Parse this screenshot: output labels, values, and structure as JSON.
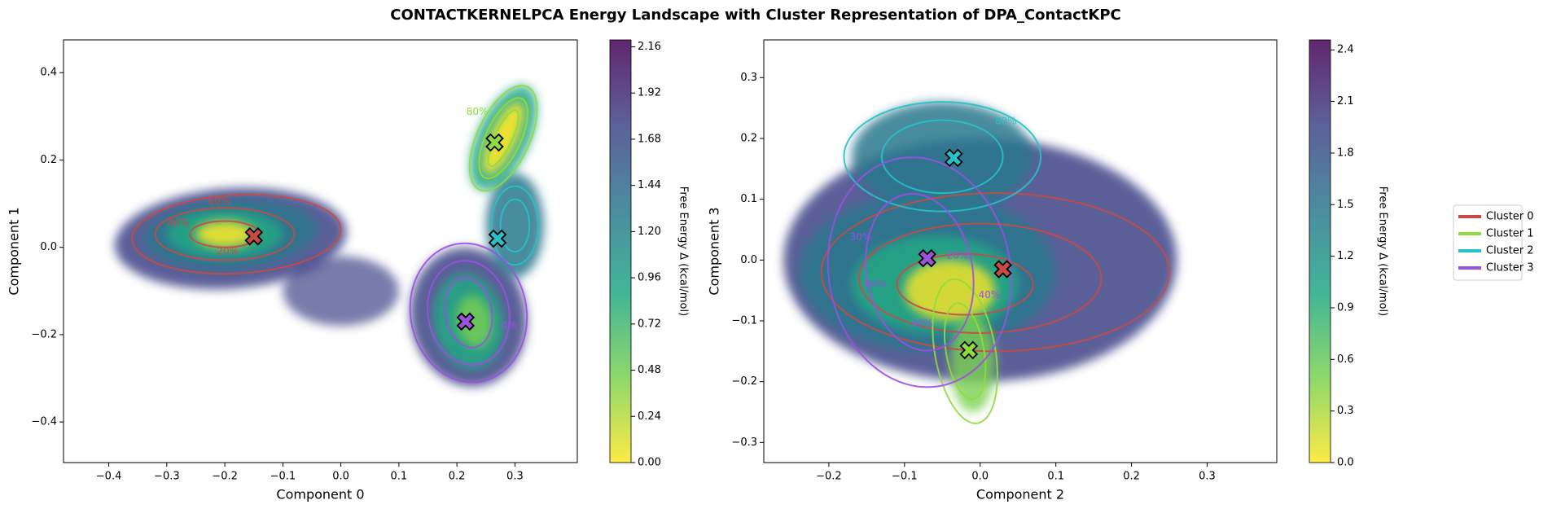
{
  "title": "CONTACTKERNELPCA Energy Landscape with Cluster Representation of DPA_ContactKPC",
  "legend": {
    "corner": "right",
    "entries": [
      {
        "name": "Cluster 0",
        "color": "#c94a44"
      },
      {
        "name": "Cluster 1",
        "color": "#8fdc3f"
      },
      {
        "name": "Cluster 2",
        "color": "#26c1c9"
      },
      {
        "name": "Cluster 3",
        "color": "#9b50e0"
      }
    ]
  },
  "colormap": [
    "#fde725",
    "#7ad151",
    "#22a884",
    "#2a788e",
    "#414487",
    "#440154"
  ],
  "chart_data": [
    {
      "type": "scatter",
      "x_label": "Component 0",
      "y_label": "Component 1",
      "x": [
        -0.15,
        0.265,
        0.27,
        0.215
      ],
      "values": [
        0.025,
        0.24,
        0.02,
        -0.17
      ],
      "colors": [
        "#c94a44",
        "#8fdc3f",
        "#26c1c9",
        "#9b50e0"
      ],
      "xlim": [
        -0.478,
        0.4075
      ],
      "ylim": [
        -0.493,
        0.475
      ],
      "xticks": [
        {
          "value": -0.4,
          "label": "−0.4"
        },
        {
          "value": -0.3,
          "label": "−0.3"
        },
        {
          "value": -0.2,
          "label": "−0.2"
        },
        {
          "value": -0.1,
          "label": "−0.1"
        },
        {
          "value": 0,
          "label": "0.0"
        },
        {
          "value": 0.1,
          "label": "0.1"
        },
        {
          "value": 0.2,
          "label": "0.2"
        },
        {
          "value": 0.3,
          "label": "0.3"
        }
      ],
      "yticks": [
        {
          "value": -0.4,
          "label": "−0.4"
        },
        {
          "value": -0.2,
          "label": "−0.2"
        },
        {
          "value": 0,
          "label": "0.0"
        },
        {
          "value": 0.2,
          "label": "0.2"
        },
        {
          "value": 0.4,
          "label": "0.4"
        }
      ],
      "colorbar": {
        "label": "Free Energy Δ (kcal/mol)",
        "lim": [
          0,
          2.196
        ],
        "ticks": [
          {
            "value": 0,
            "label": "0.00"
          },
          0.24,
          0.48,
          0.72,
          0.96,
          {
            "value": 1.2,
            "label": "1.20"
          },
          1.44,
          1.68,
          1.92,
          2.16
        ]
      },
      "annotations": [
        {
          "text": "20%",
          "x": -0.195,
          "y": -0.01,
          "color": "#c94a44"
        },
        {
          "text": "40%",
          "x": -0.28,
          "y": 0.055,
          "color": "#c94a44"
        },
        {
          "text": "60%",
          "x": -0.21,
          "y": 0.105,
          "color": "#c94a44"
        },
        {
          "text": "80%",
          "x": 0.235,
          "y": 0.31,
          "color": "#8fdc3f"
        },
        {
          "text": "0%",
          "x": 0.29,
          "y": -0.18,
          "color": "#9b50e0"
        }
      ]
    },
    {
      "type": "scatter",
      "x_label": "Component 2",
      "y_label": "Component 3",
      "x": [
        0.03,
        -0.015,
        -0.035,
        -0.07
      ],
      "values": [
        -0.015,
        -0.148,
        0.168,
        0.003
      ],
      "colors": [
        "#c94a44",
        "#8fdc3f",
        "#26c1c9",
        "#9b50e0"
      ],
      "xlim": [
        -0.286,
        0.392
      ],
      "ylim": [
        -0.333,
        0.362
      ],
      "xticks": [
        {
          "value": -0.2,
          "label": "−0.2"
        },
        {
          "value": -0.1,
          "label": "−0.1"
        },
        {
          "value": 0,
          "label": "0.0"
        },
        0.1,
        0.2,
        0.3
      ],
      "yticks": [
        {
          "value": -0.3,
          "label": "−0.3"
        },
        {
          "value": -0.2,
          "label": "−0.2"
        },
        {
          "value": -0.1,
          "label": "−0.1"
        },
        {
          "value": 0,
          "label": "0.0"
        },
        0.1,
        0.2,
        0.3
      ],
      "colorbar": {
        "label": "Free Energy Δ (kcal/mol)",
        "lim": [
          0,
          2.458
        ],
        "ticks": [
          {
            "value": 0,
            "label": "0.0"
          },
          0.3,
          0.6,
          0.9,
          1.2,
          1.5,
          1.8,
          2.1,
          2.4
        ]
      },
      "annotations": [
        {
          "text": "80%",
          "x": 0.034,
          "y": 0.228,
          "color": "#26c1c9"
        },
        {
          "text": "20%",
          "x": -0.03,
          "y": 0.007,
          "color": "#9b50e0"
        },
        {
          "text": "80%",
          "x": -0.139,
          "y": -0.04,
          "color": "#9b50e0"
        },
        {
          "text": "40%",
          "x": -0.077,
          "y": -0.105,
          "color": "#9b50e0"
        },
        {
          "text": "40%",
          "x": 0.012,
          "y": -0.058,
          "color": "#9b50e0"
        },
        {
          "text": "30%",
          "x": -0.158,
          "y": 0.037,
          "color": "#9b50e0"
        }
      ]
    }
  ]
}
